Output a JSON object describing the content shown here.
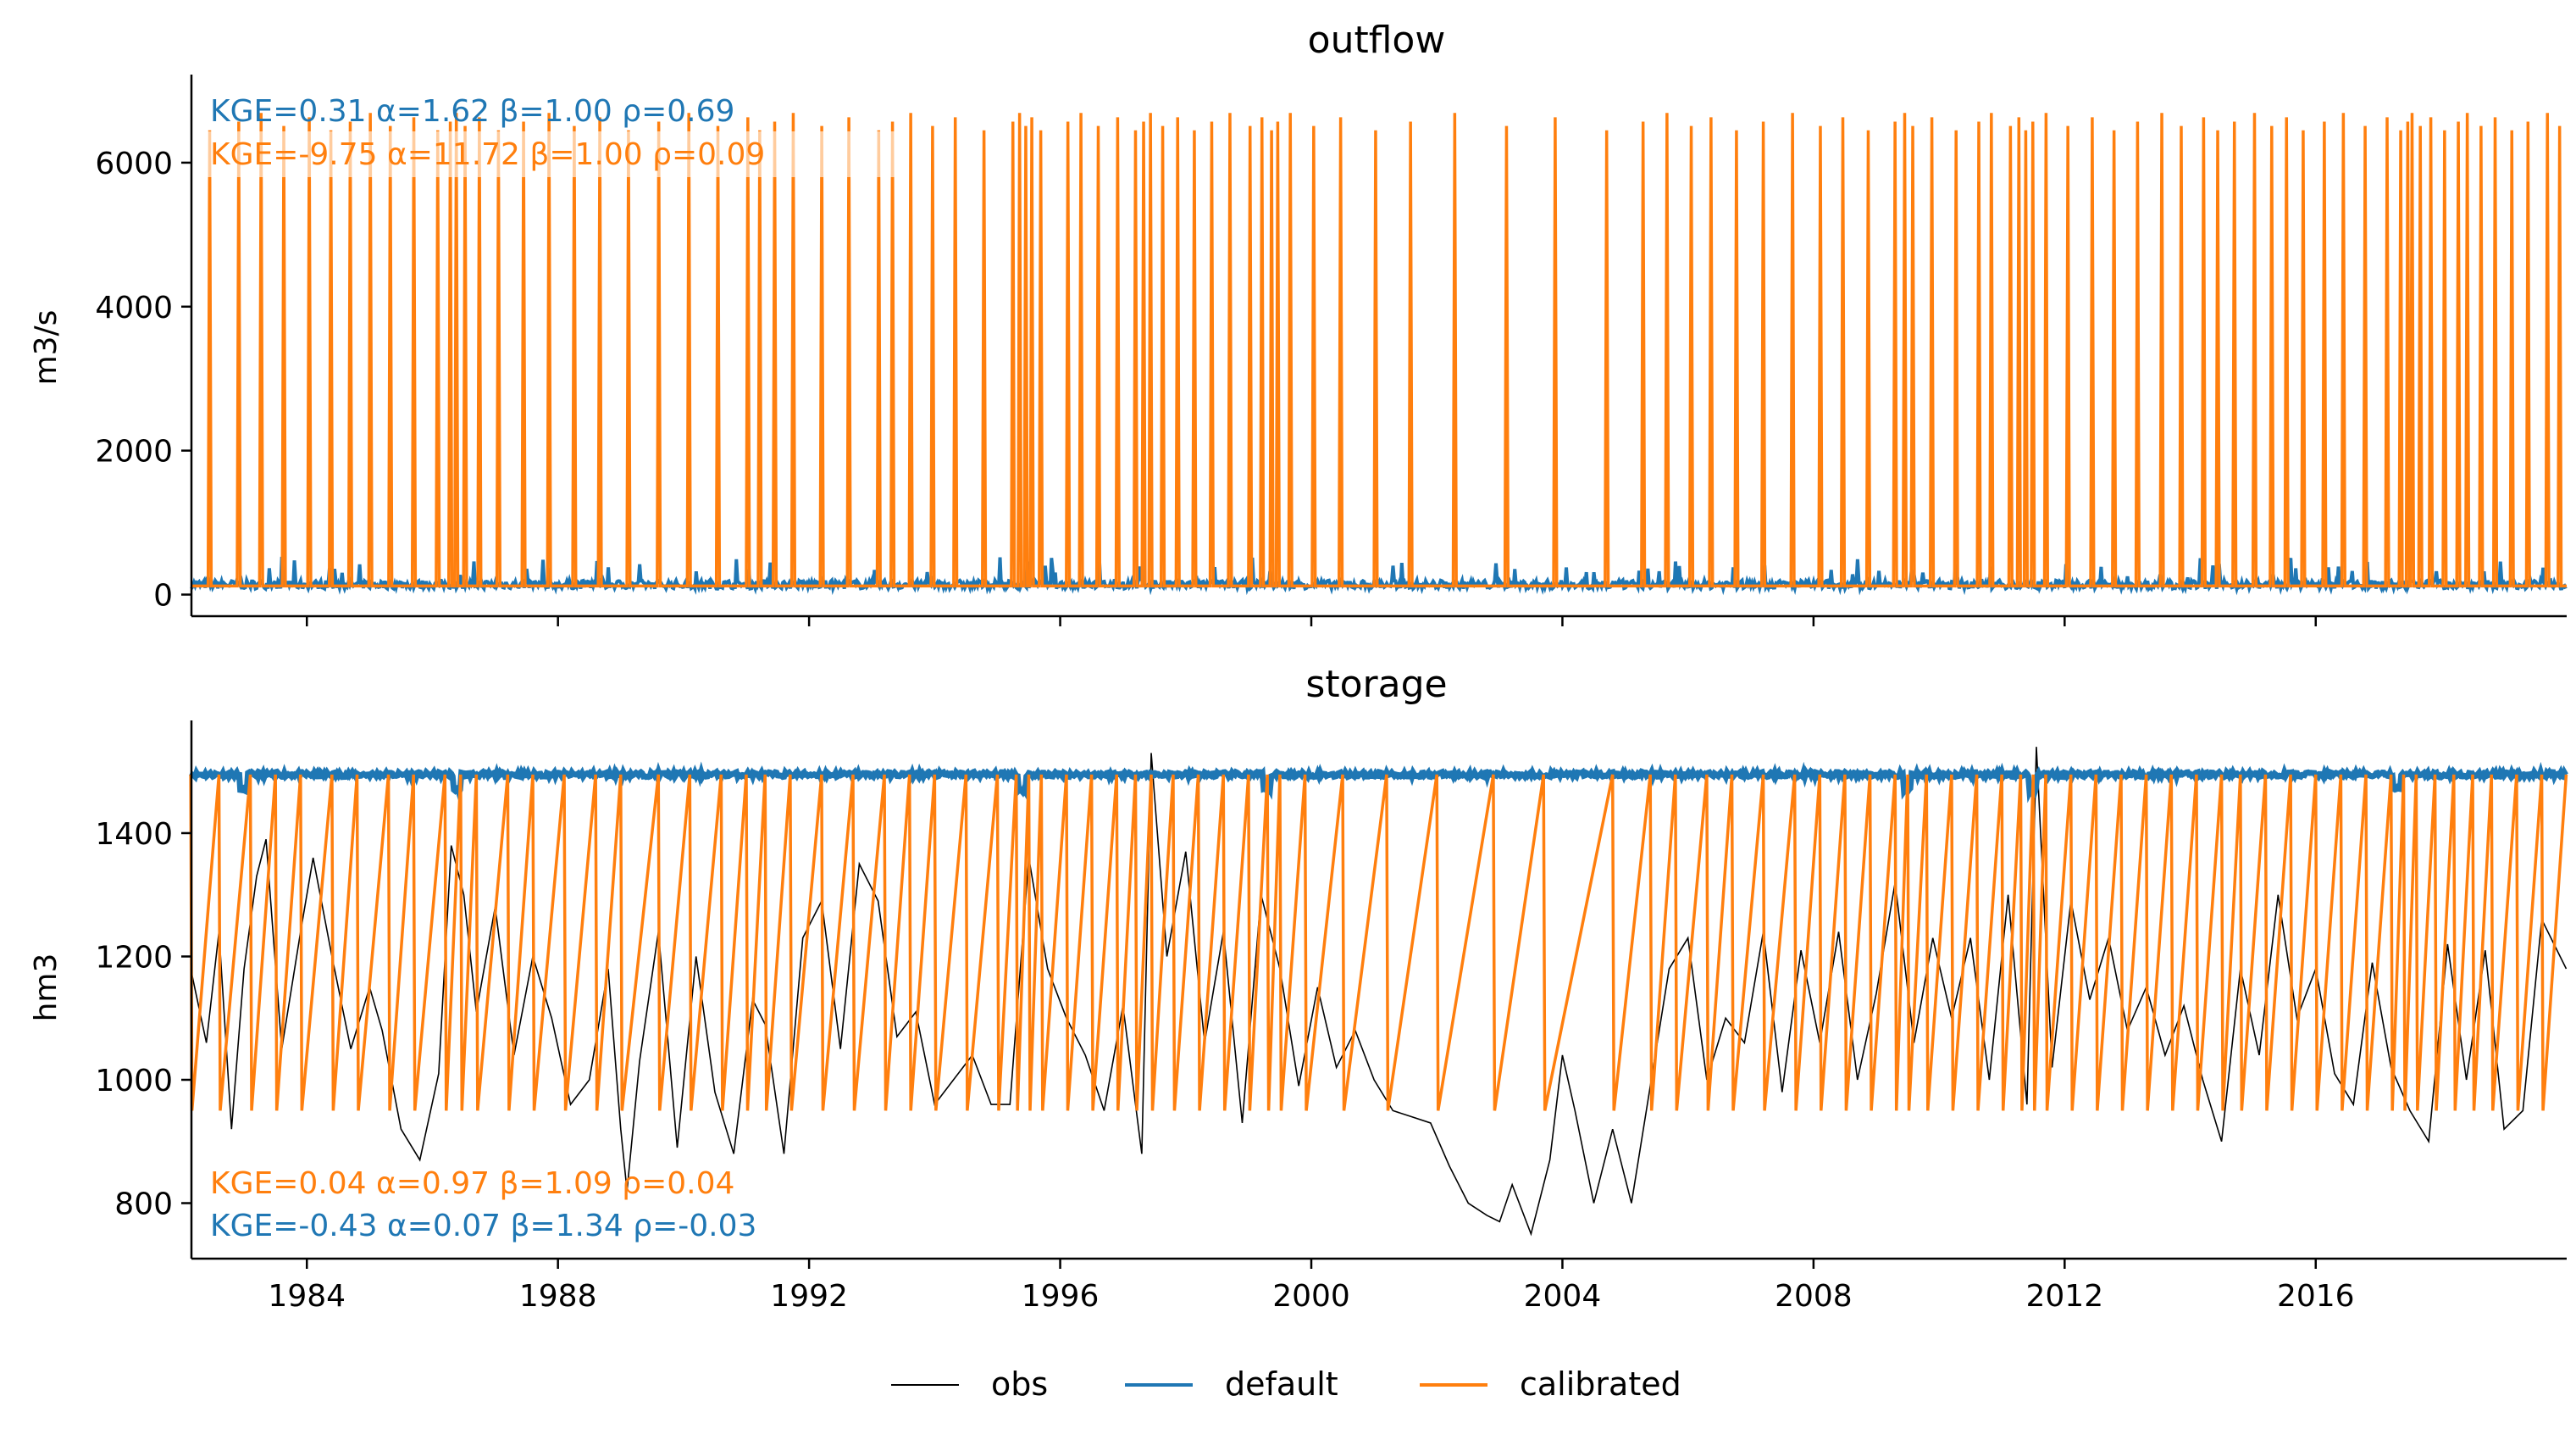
{
  "figure": {
    "legend": [
      {
        "name": "obs",
        "color": "#000000"
      },
      {
        "name": "default",
        "color": "#1f77b4"
      },
      {
        "name": "calibrated",
        "color": "#ff7f0e"
      }
    ]
  },
  "chart_data": [
    {
      "type": "line",
      "title": "outflow",
      "ylabel": "m3/s",
      "xlim": [
        "1982-03-01",
        "2019-12-31"
      ],
      "ylim": [
        -300,
        7200
      ],
      "yticks": [
        0,
        2000,
        4000,
        6000
      ],
      "ytick_labels": [
        "0",
        "2000",
        "4000",
        "6000"
      ],
      "xticks": [
        "1984-01-01",
        "1988-01-01",
        "1992-01-01",
        "1996-01-01",
        "2000-01-01",
        "2004-01-01",
        "2008-01-01",
        "2012-01-01",
        "2016-01-01"
      ],
      "xtick_labels": [],
      "grid": false,
      "annotations": [
        {
          "text": "KGE=0.31  α=1.62  β=1.00  ρ=0.69",
          "series": "default",
          "color": "#1f77b4"
        },
        {
          "text": "KGE=-9.75  α=11.72  β=1.00  ρ=0.09",
          "series": "calibrated",
          "color": "#ff7f0e"
        }
      ],
      "series": [
        {
          "name": "default",
          "color": "#1f77b4",
          "baseline": 140,
          "noise": 60
        },
        {
          "name": "calibrated",
          "color": "#ff7f0e",
          "low": 120,
          "peak": 6450,
          "spike_dates": [
            "1982-06-15",
            "1982-12-01",
            "1983-04-10",
            "1983-08-20",
            "1984-01-15",
            "1984-05-20",
            "1984-09-10",
            "1985-01-05",
            "1985-05-01",
            "1985-09-15",
            "1986-02-01",
            "1986-04-15",
            "1986-05-20",
            "1986-07-10",
            "1986-10-01",
            "1987-01-20",
            "1987-06-15",
            "1987-11-10",
            "1988-04-05",
            "1988-09-01",
            "1989-02-15",
            "1989-08-10",
            "1990-02-01",
            "1990-07-20",
            "1991-01-10",
            "1991-03-20",
            "1991-06-15",
            "1991-10-01",
            "1992-03-15",
            "1992-08-20",
            "1993-02-10",
            "1993-05-01",
            "1993-08-15",
            "1993-12-20",
            "1994-05-01",
            "1994-10-15",
            "1995-04-01",
            "1995-05-10",
            "1995-06-15",
            "1995-07-20",
            "1995-09-10",
            "1996-02-15",
            "1996-05-01",
            "1996-08-10",
            "1996-12-01",
            "1997-03-15",
            "1997-05-01",
            "1997-06-10",
            "1997-08-20",
            "1997-11-15",
            "1998-02-20",
            "1998-06-01",
            "1998-09-15",
            "1999-01-10",
            "1999-03-20",
            "1999-05-15",
            "1999-06-20",
            "1999-09-01",
            "2000-01-15",
            "2000-06-20",
            "2001-01-10",
            "2001-08-01",
            "2002-04-15",
            "2003-02-10",
            "2003-11-20",
            "2004-09-15",
            "2005-04-15",
            "2005-09-01",
            "2006-01-20",
            "2006-05-15",
            "2006-10-10",
            "2007-03-15",
            "2007-09-01",
            "2008-02-10",
            "2008-06-20",
            "2008-11-15",
            "2009-04-20",
            "2009-06-15",
            "2009-08-01",
            "2009-11-20",
            "2010-04-10",
            "2010-08-20",
            "2010-11-01",
            "2011-02-20",
            "2011-04-10",
            "2011-05-20",
            "2011-06-30",
            "2011-09-15",
            "2012-01-20",
            "2012-06-10",
            "2012-10-15",
            "2013-03-01",
            "2013-07-20",
            "2013-11-10",
            "2014-03-20",
            "2014-06-10",
            "2014-09-15",
            "2015-01-10",
            "2015-04-20",
            "2015-07-15",
            "2015-10-20",
            "2016-02-20",
            "2016-06-10",
            "2016-10-15",
            "2017-02-20",
            "2017-05-10",
            "2017-06-20",
            "2017-07-15",
            "2017-09-01",
            "2017-11-01",
            "2018-01-20",
            "2018-04-10",
            "2018-06-01",
            "2018-08-20",
            "2018-11-10",
            "2019-02-15",
            "2019-05-20",
            "2019-09-10",
            "2019-11-20"
          ]
        }
      ]
    },
    {
      "type": "line",
      "title": "storage",
      "ylabel": "hm3",
      "xlim": [
        "1982-03-01",
        "2019-12-31"
      ],
      "ylim": [
        710,
        1580
      ],
      "yticks": [
        800,
        1000,
        1200,
        1400
      ],
      "ytick_labels": [
        "800",
        "1000",
        "1200",
        "1400"
      ],
      "xticks": [
        "1984-01-01",
        "1988-01-01",
        "1992-01-01",
        "1996-01-01",
        "2000-01-01",
        "2004-01-01",
        "2008-01-01",
        "2012-01-01",
        "2016-01-01"
      ],
      "xtick_labels": [
        "1984",
        "1988",
        "1992",
        "1996",
        "2000",
        "2004",
        "2008",
        "2012",
        "2016"
      ],
      "grid": false,
      "annotations": [
        {
          "text": "KGE=0.04  α=0.97  β=1.09  ρ=0.04",
          "series": "calibrated",
          "color": "#ff7f0e"
        },
        {
          "text": "KGE=-0.43  α=0.07  β=1.34  ρ=-0.03",
          "series": "default",
          "color": "#1f77b4"
        }
      ],
      "series": [
        {
          "name": "obs",
          "color": "#000000",
          "x": [
            1982.15,
            1982.4,
            1982.6,
            1982.8,
            1983.0,
            1983.2,
            1983.35,
            1983.6,
            1983.9,
            1984.1,
            1984.4,
            1984.7,
            1985.0,
            1985.2,
            1985.5,
            1985.8,
            1986.1,
            1986.3,
            1986.5,
            1986.7,
            1987.0,
            1987.3,
            1987.6,
            1987.9,
            1988.2,
            1988.5,
            1988.8,
            1989.0,
            1989.1,
            1989.3,
            1989.6,
            1989.9,
            1990.2,
            1990.5,
            1990.8,
            1991.1,
            1991.3,
            1991.6,
            1991.9,
            1992.2,
            1992.5,
            1992.8,
            1993.1,
            1993.4,
            1993.7,
            1994.0,
            1994.3,
            1994.6,
            1994.9,
            1995.2,
            1995.5,
            1995.8,
            1996.1,
            1996.4,
            1996.7,
            1997.0,
            1997.3,
            1997.45,
            1997.7,
            1998.0,
            1998.3,
            1998.6,
            1998.9,
            1999.2,
            1999.5,
            1999.8,
            2000.1,
            2000.4,
            2000.7,
            2001.0,
            2001.3,
            2001.6,
            2001.9,
            2002.2,
            2002.5,
            2002.8,
            2003.0,
            2003.2,
            2003.5,
            2003.8,
            2004.0,
            2004.2,
            2004.5,
            2004.8,
            2005.1,
            2005.4,
            2005.7,
            2006.0,
            2006.3,
            2006.6,
            2006.9,
            2007.2,
            2007.5,
            2007.8,
            2008.1,
            2008.4,
            2008.7,
            2009.0,
            2009.3,
            2009.6,
            2009.9,
            2010.2,
            2010.5,
            2010.8,
            2011.1,
            2011.4,
            2011.55,
            2011.8,
            2012.1,
            2012.4,
            2012.7,
            2013.0,
            2013.3,
            2013.6,
            2013.9,
            2014.2,
            2014.5,
            2014.8,
            2015.1,
            2015.4,
            2015.7,
            2016.0,
            2016.3,
            2016.6,
            2016.9,
            2017.2,
            2017.5,
            2017.8,
            2018.1,
            2018.4,
            2018.7,
            2019.0,
            2019.3,
            2019.6,
            2019.99
          ],
          "y": [
            1180,
            1060,
            1240,
            920,
            1180,
            1330,
            1390,
            1050,
            1240,
            1360,
            1200,
            1050,
            1150,
            1080,
            920,
            870,
            1010,
            1380,
            1300,
            1110,
            1280,
            1040,
            1200,
            1100,
            960,
            1000,
            1180,
            920,
            820,
            1030,
            1240,
            890,
            1200,
            980,
            880,
            1130,
            1090,
            880,
            1230,
            1290,
            1050,
            1350,
            1290,
            1070,
            1110,
            960,
            1000,
            1040,
            960,
            960,
            1360,
            1180,
            1100,
            1040,
            950,
            1120,
            880,
            1530,
            1200,
            1370,
            1060,
            1240,
            930,
            1300,
            1180,
            990,
            1150,
            1020,
            1080,
            1000,
            950,
            940,
            930,
            860,
            800,
            780,
            770,
            830,
            750,
            870,
            1040,
            950,
            800,
            920,
            800,
            990,
            1180,
            1230,
            1000,
            1100,
            1060,
            1240,
            980,
            1210,
            1060,
            1240,
            1000,
            1140,
            1320,
            1060,
            1230,
            1100,
            1230,
            1000,
            1300,
            960,
            1540,
            1020,
            1290,
            1130,
            1230,
            1080,
            1150,
            1040,
            1120,
            1000,
            900,
            1180,
            1040,
            1300,
            1100,
            1180,
            1010,
            960,
            1190,
            1020,
            950,
            900,
            1220,
            1000,
            1210,
            920,
            950,
            1260,
            1180
          ]
        },
        {
          "name": "default",
          "color": "#1f77b4",
          "baseline": 1495,
          "dips": [
            1983.0,
            1986.4,
            1995.4,
            1999.3,
            2009.5,
            2011.5,
            2017.3
          ]
        },
        {
          "name": "calibrated",
          "color": "#ff7f0e",
          "low": 950,
          "high": 1495,
          "cycles": [
            [
              1982.15,
              1982.6
            ],
            [
              1982.6,
              1983.1
            ],
            [
              1983.1,
              1983.5
            ],
            [
              1983.5,
              1983.9
            ],
            [
              1983.9,
              1984.4
            ],
            [
              1984.4,
              1984.8
            ],
            [
              1984.8,
              1985.3
            ],
            [
              1985.3,
              1985.7
            ],
            [
              1985.7,
              1986.2
            ],
            [
              1986.2,
              1986.45
            ],
            [
              1986.45,
              1986.7
            ],
            [
              1986.7,
              1987.2
            ],
            [
              1987.2,
              1987.6
            ],
            [
              1987.6,
              1988.1
            ],
            [
              1988.1,
              1988.6
            ],
            [
              1988.6,
              1989.0
            ],
            [
              1989.0,
              1989.6
            ],
            [
              1989.6,
              1990.1
            ],
            [
              1990.1,
              1990.6
            ],
            [
              1990.6,
              1991.0
            ],
            [
              1991.0,
              1991.3
            ],
            [
              1991.3,
              1991.7
            ],
            [
              1991.7,
              1992.2
            ],
            [
              1992.2,
              1992.7
            ],
            [
              1992.7,
              1993.2
            ],
            [
              1993.2,
              1993.6
            ],
            [
              1993.6,
              1994.0
            ],
            [
              1994.0,
              1994.5
            ],
            [
              1994.5,
              1995.0
            ],
            [
              1995.0,
              1995.3
            ],
            [
              1995.3,
              1995.5
            ],
            [
              1995.5,
              1995.7
            ],
            [
              1995.7,
              1996.1
            ],
            [
              1996.1,
              1996.5
            ],
            [
              1996.5,
              1996.9
            ],
            [
              1996.9,
              1997.2
            ],
            [
              1997.2,
              1997.45
            ],
            [
              1997.45,
              1997.8
            ],
            [
              1997.8,
              1998.2
            ],
            [
              1998.2,
              1998.6
            ],
            [
              1998.6,
              1999.0
            ],
            [
              1999.0,
              1999.3
            ],
            [
              1999.3,
              1999.5
            ],
            [
              1999.5,
              1999.9
            ],
            [
              1999.9,
              2000.5
            ],
            [
              2000.5,
              2001.2
            ],
            [
              2001.2,
              2002.0
            ],
            [
              2002.0,
              2002.9
            ],
            [
              2002.9,
              2003.7
            ],
            [
              2003.7,
              2004.8
            ],
            [
              2004.8,
              2005.4
            ],
            [
              2005.4,
              2005.8
            ],
            [
              2005.8,
              2006.3
            ],
            [
              2006.3,
              2006.7
            ],
            [
              2006.7,
              2007.2
            ],
            [
              2007.2,
              2007.7
            ],
            [
              2007.7,
              2008.1
            ],
            [
              2008.1,
              2008.5
            ],
            [
              2008.5,
              2008.9
            ],
            [
              2008.9,
              2009.3
            ],
            [
              2009.3,
              2009.5
            ],
            [
              2009.5,
              2009.8
            ],
            [
              2009.8,
              2010.2
            ],
            [
              2010.2,
              2010.6
            ],
            [
              2010.6,
              2011.0
            ],
            [
              2011.0,
              2011.3
            ],
            [
              2011.3,
              2011.5
            ],
            [
              2011.5,
              2011.7
            ],
            [
              2011.7,
              2012.1
            ],
            [
              2012.1,
              2012.5
            ],
            [
              2012.5,
              2012.9
            ],
            [
              2012.9,
              2013.3
            ],
            [
              2013.3,
              2013.7
            ],
            [
              2013.7,
              2014.1
            ],
            [
              2014.1,
              2014.5
            ],
            [
              2014.5,
              2014.8
            ],
            [
              2014.8,
              2015.2
            ],
            [
              2015.2,
              2015.6
            ],
            [
              2015.6,
              2016.0
            ],
            [
              2016.0,
              2016.4
            ],
            [
              2016.4,
              2016.8
            ],
            [
              2016.8,
              2017.2
            ],
            [
              2017.2,
              2017.4
            ],
            [
              2017.4,
              2017.6
            ],
            [
              2017.6,
              2017.9
            ],
            [
              2017.9,
              2018.2
            ],
            [
              2018.2,
              2018.5
            ],
            [
              2018.5,
              2018.8
            ],
            [
              2018.8,
              2019.2
            ],
            [
              2019.2,
              2019.6
            ],
            [
              2019.6,
              2019.99
            ]
          ]
        }
      ]
    }
  ]
}
